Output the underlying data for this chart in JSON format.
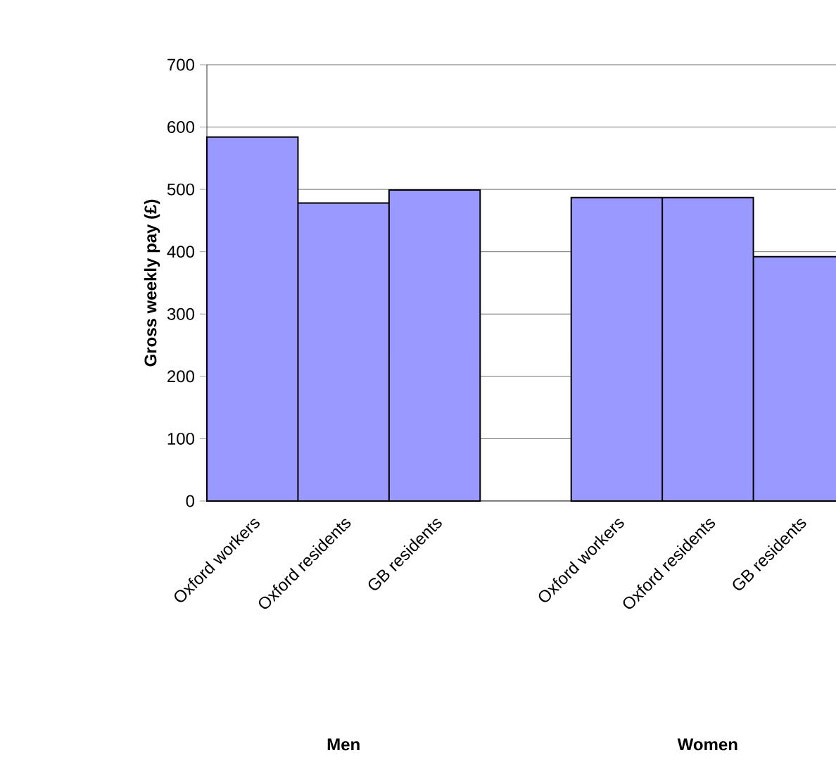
{
  "chart_data": {
    "type": "bar",
    "ylabel": "Gross weekly pay (£)",
    "categories": [
      "Oxford workers",
      "Oxford residents",
      "GB residents",
      null,
      "Oxford workers",
      "Oxford residents",
      "GB residents"
    ],
    "values": [
      584,
      478,
      499,
      null,
      487,
      487,
      392
    ],
    "color": "#9999ff",
    "ylim": [
      0,
      700
    ],
    "yticks": [
      0,
      100,
      200,
      300,
      400,
      500,
      600,
      700
    ],
    "grid": "y",
    "annotations": [
      "Men",
      "Women"
    ]
  }
}
